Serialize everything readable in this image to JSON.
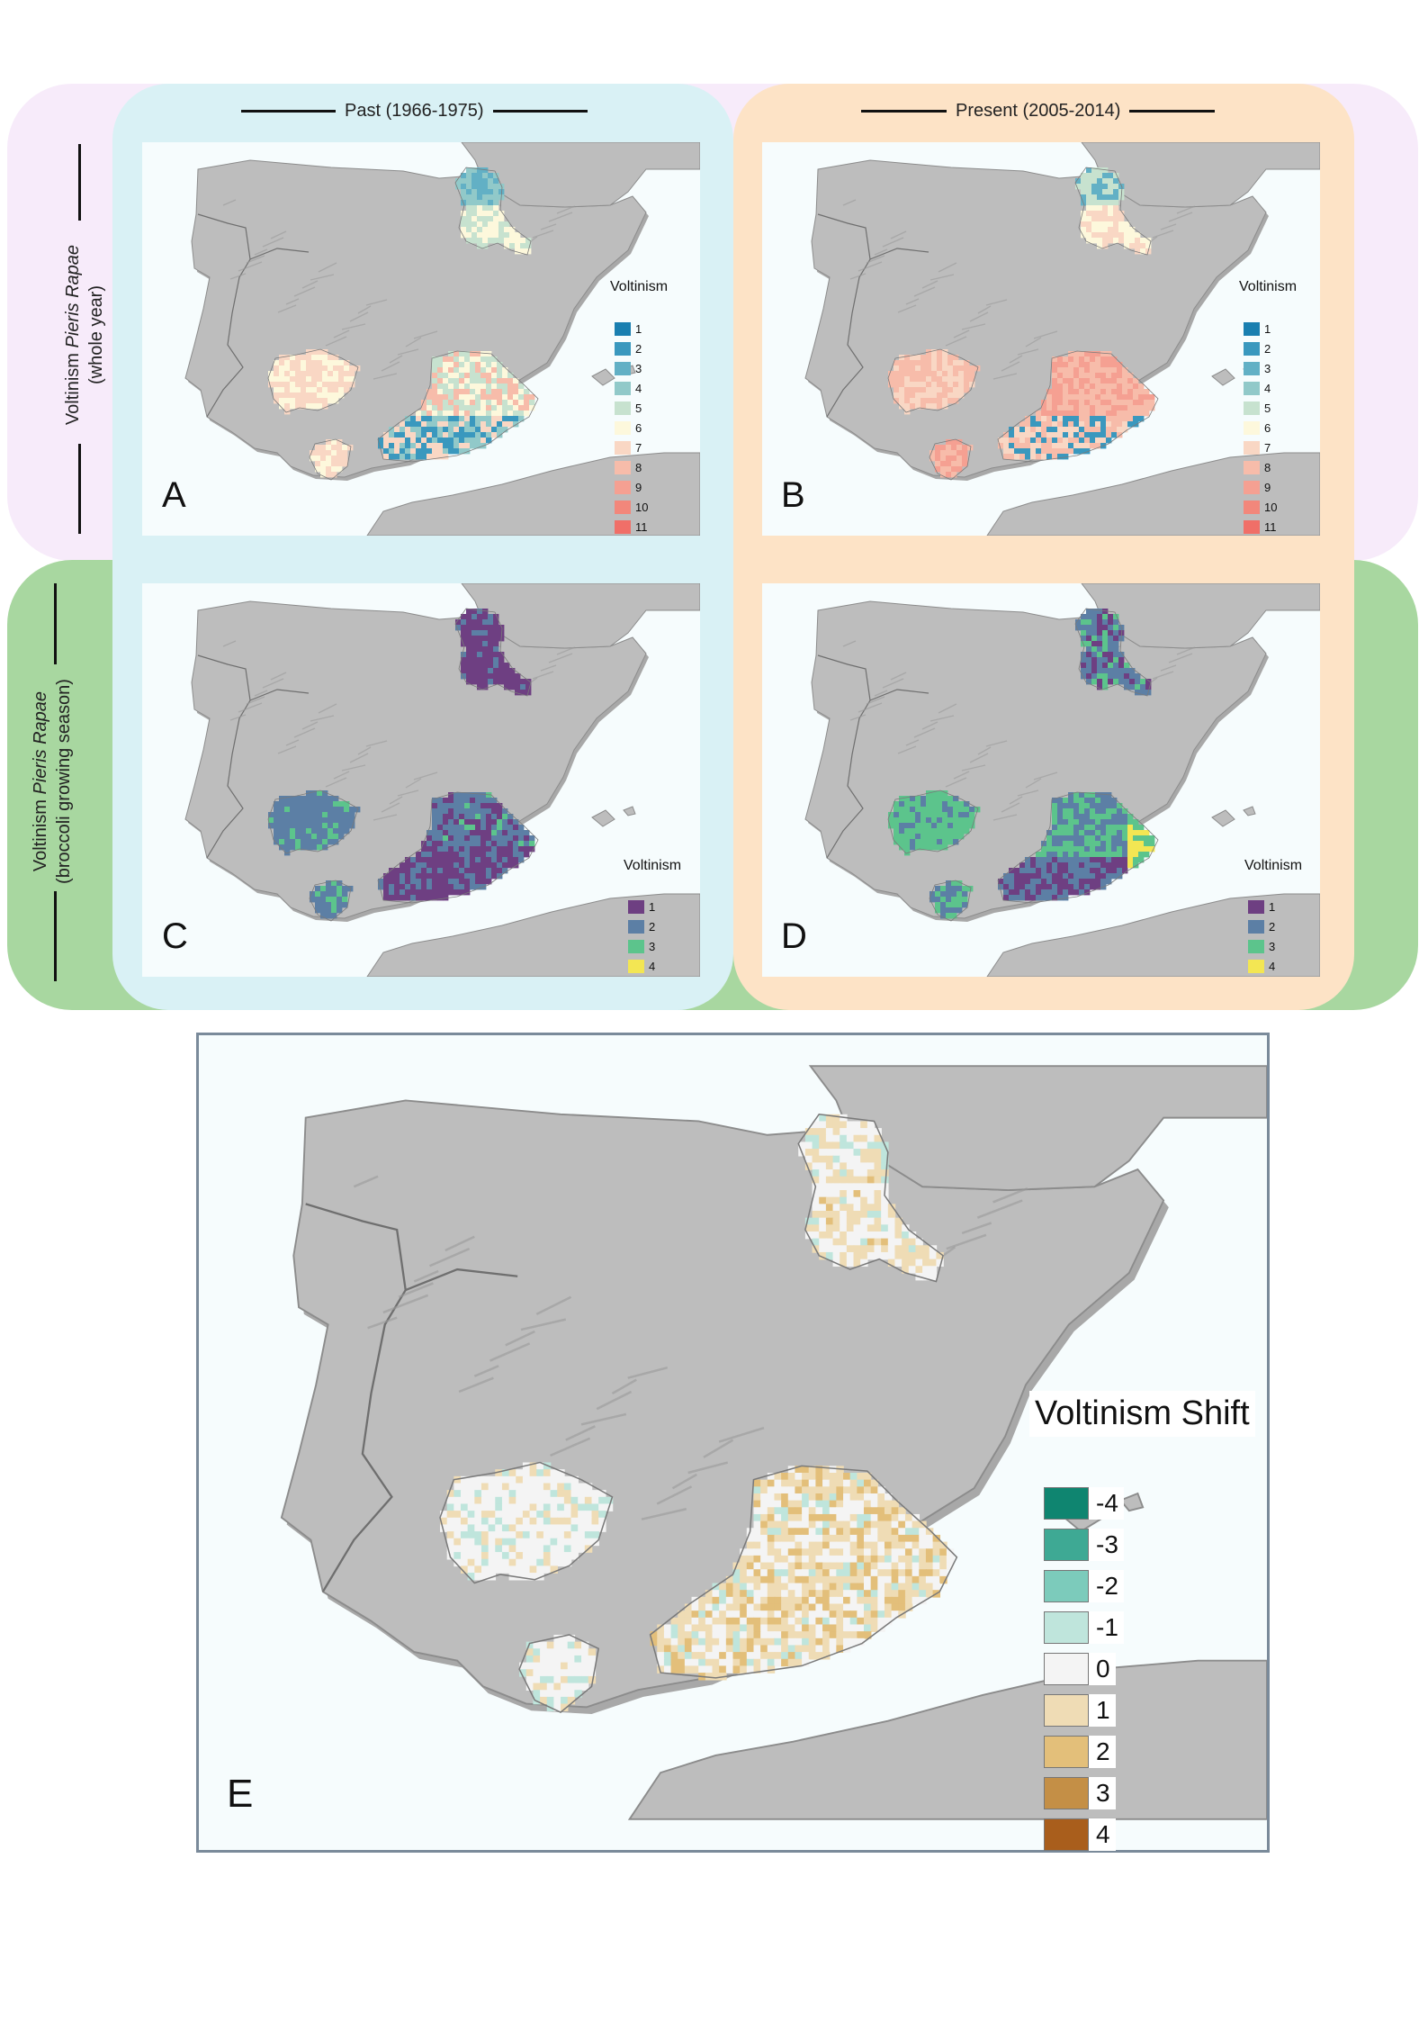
{
  "columns": {
    "past": "Past (1966-1975)",
    "present": "Present (2005-2014)"
  },
  "rows": {
    "whole_year": {
      "prefix": "Voltinism ",
      "species": "Pieris Rapae",
      "season": "(whole year)"
    },
    "broccoli": {
      "prefix": "Voltinism ",
      "species": "Pieris Rapae",
      "season": "(broccoli growing season)"
    }
  },
  "colors": {
    "past_column": "#d9f1f5",
    "present_column": "#fde3c6",
    "row_whole_year": "#f7ebfa",
    "row_broccoli": "#a8d7a0",
    "land": "#bdbdbd",
    "sea": "#f6fcfd"
  },
  "panels": {
    "A": {
      "letter": "A"
    },
    "B": {
      "letter": "B"
    },
    "C": {
      "letter": "C"
    },
    "D": {
      "letter": "D"
    },
    "E": {
      "letter": "E"
    }
  },
  "legend_whole_year": {
    "title": "Voltinism",
    "items": [
      {
        "label": "1",
        "color": "#1a7fb0"
      },
      {
        "label": "2",
        "color": "#3a98be"
      },
      {
        "label": "3",
        "color": "#62b0c5"
      },
      {
        "label": "4",
        "color": "#91c9c9"
      },
      {
        "label": "5",
        "color": "#c7e2cf"
      },
      {
        "label": "6",
        "color": "#fdf8dc"
      },
      {
        "label": "7",
        "color": "#f9d7c4"
      },
      {
        "label": "8",
        "color": "#f7bcaa"
      },
      {
        "label": "9",
        "color": "#f5a092"
      },
      {
        "label": "10",
        "color": "#f2877b"
      },
      {
        "label": "11",
        "color": "#f06f68"
      }
    ]
  },
  "legend_broccoli": {
    "title": "Voltinism",
    "items": [
      {
        "label": "1",
        "color": "#6e3f82"
      },
      {
        "label": "2",
        "color": "#5c7fa5"
      },
      {
        "label": "3",
        "color": "#5cc48c"
      },
      {
        "label": "4",
        "color": "#f3e653"
      }
    ]
  },
  "legend_shift": {
    "title": "Voltinism Shift",
    "items": [
      {
        "label": "-4",
        "color": "#0f8570"
      },
      {
        "label": "-3",
        "color": "#3ea994"
      },
      {
        "label": "-2",
        "color": "#7ccbbb"
      },
      {
        "label": "-1",
        "color": "#bfe5dc"
      },
      {
        "label": "0",
        "color": "#f4f4f4"
      },
      {
        "label": "1",
        "color": "#efdcb5"
      },
      {
        "label": "2",
        "color": "#e3bf7a"
      },
      {
        "label": "3",
        "color": "#c48f46"
      },
      {
        "label": "4",
        "color": "#a95e1c"
      }
    ]
  }
}
